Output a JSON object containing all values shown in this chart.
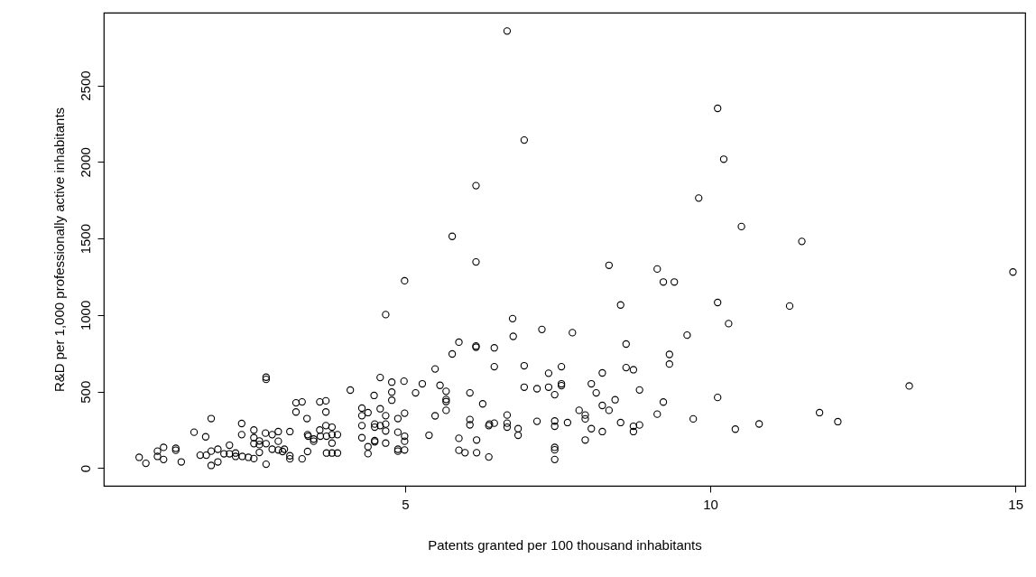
{
  "chart_data": {
    "type": "scatter",
    "xlabel": "Patents granted per 100 thousand inhabitants",
    "ylabel": "R&D per 1,000 professionally active inhabitants",
    "marker": "circle",
    "grid": false,
    "xlim": [
      0.06,
      15.16
    ],
    "ylim": [
      -115,
      2975
    ],
    "xticks": [
      5,
      10,
      15
    ],
    "yticks": [
      0,
      500,
      1000,
      1500,
      2000,
      2500
    ],
    "series": [
      {
        "color": "#000000",
        "x": [
          0.64,
          0.75,
          0.94,
          0.94,
          1.04,
          1.04,
          1.24,
          1.24,
          1.33,
          1.54,
          1.73,
          1.82,
          1.82,
          1.93,
          1.64,
          1.74,
          1.82,
          1.93,
          2.03,
          2.12,
          2.12,
          2.22,
          2.22,
          2.33,
          2.43,
          2.32,
          2.32,
          2.52,
          2.52,
          2.52,
          2.52,
          2.61,
          2.61,
          2.61,
          2.71,
          2.72,
          2.72,
          2.72,
          2.72,
          2.82,
          2.82,
          2.92,
          2.92,
          2.92,
          2.99,
          3.02,
          3.11,
          3.11,
          3.11,
          3.21,
          3.21,
          3.31,
          3.31,
          3.39,
          3.4,
          3.4,
          3.41,
          3.5,
          3.5,
          3.6,
          3.6,
          3.61,
          3.7,
          3.7,
          3.7,
          3.71,
          3.71,
          3.8,
          3.8,
          3.8,
          3.8,
          3.89,
          3.89,
          4.1,
          4.29,
          4.29,
          4.29,
          4.29,
          4.39,
          4.39,
          4.39,
          4.49,
          4.5,
          4.5,
          4.5,
          4.5,
          4.59,
          4.59,
          4.59,
          4.68,
          4.68,
          4.68,
          4.68,
          4.78,
          4.78,
          4.78,
          4.88,
          4.88,
          4.88,
          4.88,
          4.98,
          4.99,
          4.99,
          4.99,
          4.99,
          5.17,
          5.28,
          5.49,
          5.49,
          5.39,
          5.57,
          5.67,
          5.67,
          5.67,
          5.67,
          5.77,
          5.88,
          5.88,
          5.88,
          5.98,
          6.06,
          6.06,
          6.06,
          6.16,
          6.16,
          6.17,
          6.17,
          6.27,
          6.37,
          6.38,
          6.37,
          6.46,
          6.46,
          6.46,
          6.67,
          6.67,
          6.67,
          6.77,
          6.85,
          6.85,
          6.95,
          6.95,
          7.16,
          7.16,
          7.35,
          7.35,
          7.45,
          7.45,
          7.45,
          7.45,
          7.45,
          7.45,
          7.56,
          7.56,
          7.56,
          7.66,
          7.74,
          7.85,
          7.95,
          7.95,
          7.95,
          8.05,
          8.05,
          8.13,
          8.23,
          8.23,
          8.23,
          8.34,
          8.44,
          8.53,
          8.62,
          8.62,
          8.74,
          8.74,
          8.74,
          8.84,
          8.84,
          9.13,
          9.23,
          9.33,
          9.33,
          10.51,
          11.5,
          9.41,
          10.12,
          11.3,
          10.3,
          9.62,
          10.12,
          9.72,
          10.41,
          10.8,
          11.79,
          12.09,
          13.26,
          14.96,
          6.67,
          6.95,
          6.16,
          5.77,
          6.16,
          4.99,
          4.68,
          6.76,
          7.24,
          8.34,
          9.13,
          9.23,
          8.53,
          10.12,
          10.22,
          9.81
        ],
        "values": [
          71,
          32,
          111,
          77,
          136,
          57,
          130,
          117,
          41,
          235,
          205,
          324,
          18,
          41,
          85,
          85,
          111,
          124,
          94,
          150,
          94,
          99,
          77,
          77,
          71,
          292,
          219,
          249,
          199,
          160,
          63,
          178,
          154,
          103,
          229,
          594,
          580,
          160,
          26,
          219,
          124,
          239,
          176,
          119,
          109,
          124,
          239,
          81,
          61,
          427,
          367,
          433,
          61,
          324,
          219,
          109,
          209,
          190,
          176,
          433,
          249,
          209,
          440,
          367,
          278,
          209,
          99,
          268,
          219,
          164,
          99,
          219,
          99,
          510,
          392,
          343,
          278,
          199,
          363,
          140,
          95,
          475,
          288,
          268,
          180,
          172,
          592,
          388,
          278,
          343,
          288,
          243,
          164,
          562,
          497,
          444,
          324,
          235,
          124,
          111,
          568,
          359,
          209,
          176,
          119,
          492,
          551,
          648,
          342,
          215,
          541,
          502,
          449,
          435,
          378,
          746,
          823,
          195,
          117,
          101,
          492,
          318,
          283,
          798,
          790,
          184,
          101,
          420,
          278,
          288,
          73,
          786,
          663,
          294,
          347,
          294,
          268,
          861,
          258,
          215,
          669,
          529,
          519,
          306,
          620,
          529,
          480,
          308,
          274,
          136,
          120,
          57,
          663,
          551,
          539,
          298,
          885,
          378,
          347,
          322,
          184,
          551,
          258,
          492,
          622,
          410,
          239,
          378,
          447,
          298,
          811,
          657,
          643,
          274,
          239,
          511,
          282,
          353,
          432,
          743,
          680,
          1578,
          1481,
          1216,
          1082,
          1059,
          944,
          869,
          462,
          322,
          255,
          289,
          363,
          304,
          537,
          1281,
          2855,
          2143,
          1845,
          1514,
          1347,
          1224,
          1003,
          977,
          906,
          1325,
          1301,
          1216,
          1066,
          2350,
          2018,
          1764
        ]
      }
    ]
  }
}
